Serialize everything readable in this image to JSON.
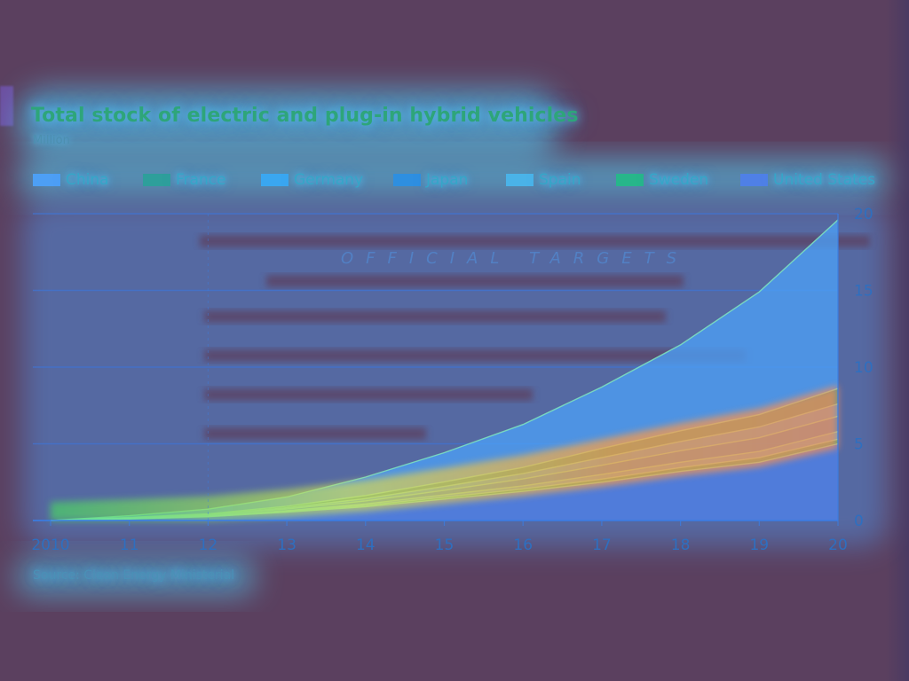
{
  "colors": {
    "background": "#5b405f",
    "glow": "#53d7ff",
    "heat_low": "#3d8cf3",
    "heat_mid": "#48d862",
    "heat_high": "#ff9c42"
  },
  "chart_data": {
    "type": "area",
    "title": "Total stock of electric and plug-in hybrid vehicles",
    "subtitle": "Million",
    "source": "Source: Clean Energy Ministerial",
    "annotation": "OFFICIAL TARGETS",
    "x": [
      2010,
      2011,
      2012,
      2013,
      2014,
      2015,
      2016,
      2017,
      2018,
      2019,
      2020
    ],
    "x_tick_labels": [
      "2010",
      "11",
      "12",
      "13",
      "14",
      "15",
      "16",
      "17",
      "18",
      "19",
      "20"
    ],
    "y_ticks": [
      0,
      5,
      10,
      15,
      20
    ],
    "ylim": [
      0,
      20
    ],
    "y_axis_side": "right",
    "grid": true,
    "legend_placement": "top",
    "stacked": true,
    "series": [
      {
        "name": "China",
        "color": "#4d9ff5",
        "values": [
          0.0,
          0.1,
          0.3,
          0.6,
          1.2,
          1.9,
          2.8,
          4.0,
          5.6,
          8.0,
          11.0
        ]
      },
      {
        "name": "France",
        "color": "#2e9f9b",
        "values": [
          0.0,
          0.03,
          0.05,
          0.1,
          0.2,
          0.3,
          0.4,
          0.6,
          0.7,
          0.8,
          1.0
        ]
      },
      {
        "name": "Germany",
        "color": "#3aa7f0",
        "values": [
          0.0,
          0.02,
          0.04,
          0.08,
          0.15,
          0.25,
          0.35,
          0.5,
          0.6,
          0.7,
          0.8
        ]
      },
      {
        "name": "Japan",
        "color": "#2e8fe0",
        "values": [
          0.0,
          0.03,
          0.05,
          0.1,
          0.2,
          0.3,
          0.45,
          0.6,
          0.75,
          0.9,
          1.0
        ]
      },
      {
        "name": "Spain",
        "color": "#4ab3e8",
        "values": [
          0.0,
          0.02,
          0.03,
          0.05,
          0.1,
          0.15,
          0.2,
          0.3,
          0.35,
          0.4,
          0.5
        ]
      },
      {
        "name": "Sweden",
        "color": "#27b68a",
        "values": [
          0.0,
          0.01,
          0.02,
          0.05,
          0.08,
          0.12,
          0.16,
          0.2,
          0.25,
          0.3,
          0.3
        ]
      },
      {
        "name": "United States",
        "color": "#4f80e6",
        "values": [
          0.0,
          0.1,
          0.25,
          0.55,
          0.9,
          1.4,
          1.9,
          2.5,
          3.2,
          3.8,
          5.0
        ]
      }
    ]
  }
}
